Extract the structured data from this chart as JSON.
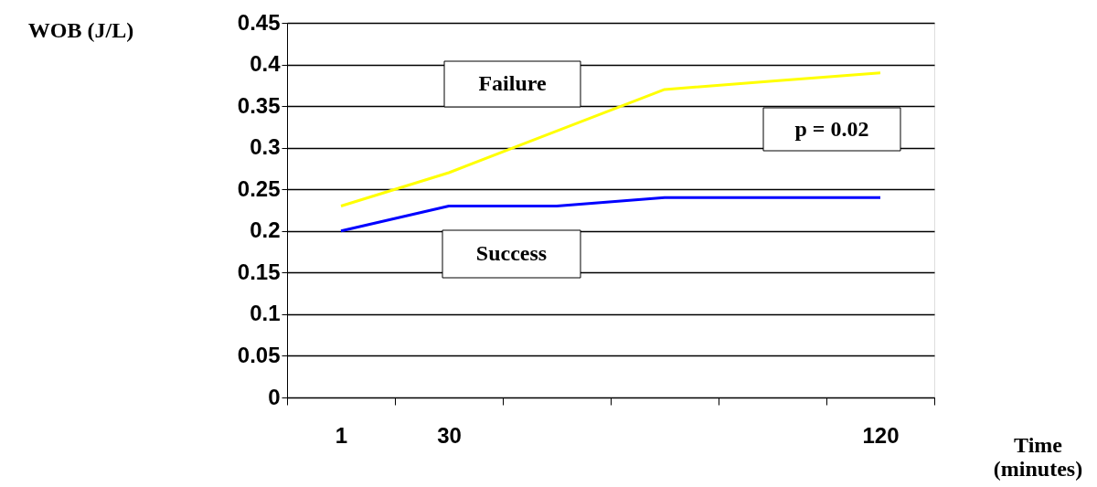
{
  "chart_data": {
    "type": "line",
    "xlabel": "Time (minutes)",
    "ylabel": "WOB (J/L)",
    "categories": [
      "1",
      "30",
      null,
      null,
      null,
      "120"
    ],
    "series": [
      {
        "name": "Failure",
        "color": "#ffff00",
        "values": [
          0.23,
          0.27,
          0.32,
          0.37,
          0.38,
          0.39
        ]
      },
      {
        "name": "Success",
        "color": "#0000ff",
        "values": [
          0.2,
          0.23,
          0.23,
          0.24,
          0.24,
          0.24
        ]
      }
    ],
    "annotations": [
      "p = 0.02"
    ],
    "ylim": [
      0,
      0.45
    ],
    "yticks": [
      0,
      0.05,
      0.1,
      0.15,
      0.2,
      0.25,
      0.3,
      0.35,
      0.4,
      0.45
    ],
    "grid": "y",
    "marker": "none",
    "line_style": "solid"
  }
}
